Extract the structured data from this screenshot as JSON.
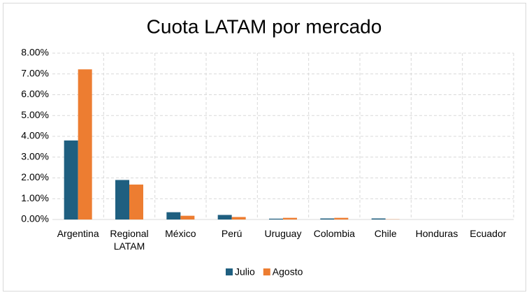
{
  "chart_data": {
    "type": "bar",
    "title": "Cuota LATAM por mercado",
    "categories": [
      "Argentina",
      "Regional LATAM",
      "México",
      "Perú",
      "Uruguay",
      "Colombia",
      "Chile",
      "Honduras",
      "Ecuador"
    ],
    "series": [
      {
        "name": "Julio",
        "color": "#1f5f80",
        "values": [
          3.8,
          1.9,
          0.35,
          0.22,
          0.04,
          0.05,
          0.05,
          0,
          0
        ]
      },
      {
        "name": "Agosto",
        "color": "#ed7d31",
        "values": [
          7.22,
          1.68,
          0.18,
          0.12,
          0.08,
          0.08,
          0.01,
          0,
          0
        ]
      }
    ],
    "ylim": [
      0,
      8
    ],
    "yticks": [
      {
        "value": 0,
        "label": "0.00%"
      },
      {
        "value": 1,
        "label": "1.00%"
      },
      {
        "value": 2,
        "label": "2.00%"
      },
      {
        "value": 3,
        "label": "3.00%"
      },
      {
        "value": 4,
        "label": "4.00%"
      },
      {
        "value": 5,
        "label": "5.00%"
      },
      {
        "value": 6,
        "label": "6.00%"
      },
      {
        "value": 7,
        "label": "7.00%"
      },
      {
        "value": 8,
        "label": "8.00%"
      }
    ],
    "grid": true,
    "legend": "bottom"
  }
}
